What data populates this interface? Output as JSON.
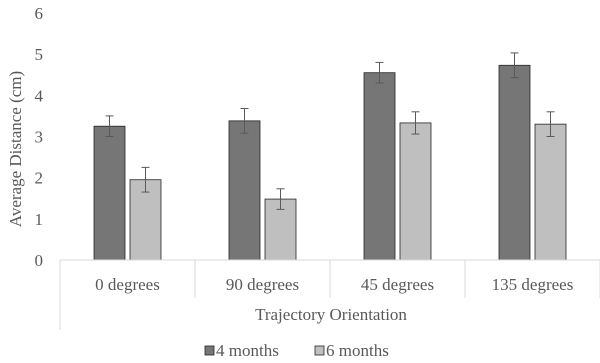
{
  "chart_data": {
    "type": "bar",
    "title": "",
    "xlabel": "Trajectory Orientation",
    "ylabel": "Average Distance (cm)",
    "ylim": [
      0,
      6
    ],
    "yticks": [
      0,
      1,
      2,
      3,
      4,
      5,
      6
    ],
    "grid": false,
    "legend_position": "bottom",
    "categories": [
      "0 degrees",
      "90 degrees",
      "45 degrees",
      "135 degrees"
    ],
    "series": [
      {
        "name": "4 months",
        "color": "#767676",
        "values": [
          3.25,
          3.38,
          4.55,
          4.73
        ],
        "errors": [
          0.25,
          0.3,
          0.25,
          0.3
        ]
      },
      {
        "name": "6 months",
        "color": "#bfbfbf",
        "values": [
          1.95,
          1.48,
          3.33,
          3.3
        ],
        "errors": [
          0.3,
          0.25,
          0.27,
          0.3
        ]
      }
    ]
  }
}
